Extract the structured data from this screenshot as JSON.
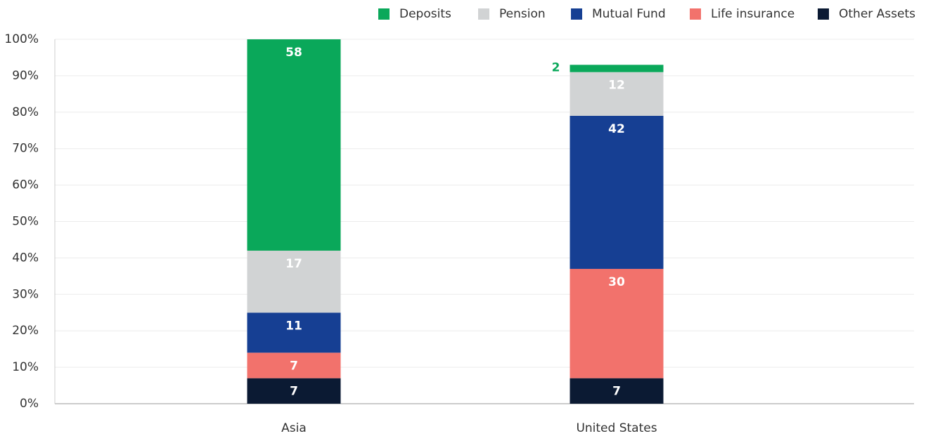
{
  "chart_data": {
    "type": "stacked_bar",
    "categories": [
      "Asia",
      "United States"
    ],
    "series": [
      {
        "name": "Other Assets",
        "color": "#0b1a33",
        "values": [
          7,
          7
        ]
      },
      {
        "name": "Life insurance",
        "color": "#f2726c",
        "values": [
          7,
          30
        ]
      },
      {
        "name": "Mutual Fund",
        "color": "#163f93",
        "values": [
          11,
          42
        ]
      },
      {
        "name": "Pension",
        "color": "#d1d3d4",
        "values": [
          17,
          12
        ]
      },
      {
        "name": "Deposits",
        "color": "#0aa85a",
        "values": [
          58,
          2
        ]
      }
    ],
    "legend_order": [
      "Deposits",
      "Pension",
      "Mutual Fund",
      "Life insurance",
      "Other Assets"
    ],
    "ylim": [
      0,
      100
    ],
    "yticks": [
      {
        "value": 0,
        "label": "0%"
      },
      {
        "value": 10,
        "label": "10%"
      },
      {
        "value": 20,
        "label": "20%"
      },
      {
        "value": 30,
        "label": "30%"
      },
      {
        "value": 40,
        "label": "40%"
      },
      {
        "value": 50,
        "label": "50%"
      },
      {
        "value": 60,
        "label": "60%"
      },
      {
        "value": 70,
        "label": "70%"
      },
      {
        "value": 80,
        "label": "80%"
      },
      {
        "value": 90,
        "label": "90%"
      },
      {
        "value": 100,
        "label": "100%"
      }
    ],
    "grid": true,
    "legend": "top-right"
  }
}
